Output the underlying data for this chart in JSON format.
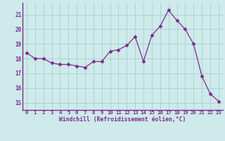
{
  "x": [
    0,
    1,
    2,
    3,
    4,
    5,
    6,
    7,
    8,
    9,
    10,
    11,
    12,
    13,
    14,
    15,
    16,
    17,
    18,
    19,
    20,
    21,
    22,
    23
  ],
  "y": [
    18.4,
    18.0,
    18.0,
    17.7,
    17.6,
    17.6,
    17.5,
    17.4,
    17.8,
    17.8,
    18.5,
    18.6,
    18.9,
    19.5,
    17.8,
    19.6,
    20.2,
    21.3,
    20.6,
    20.0,
    19.0,
    16.8,
    15.6,
    15.1
  ],
  "line_color": "#7b2d8b",
  "marker": "D",
  "marker_size": 2.5,
  "bg_color": "#ceeaea",
  "grid_color": "#aacfcf",
  "tick_color": "#7b2d8b",
  "label_color": "#7b2d8b",
  "xlabel": "Windchill (Refroidissement éolien,°C)",
  "ylim": [
    14.5,
    21.8
  ],
  "yticks": [
    15,
    16,
    17,
    18,
    19,
    20,
    21
  ],
  "xtick_labels": [
    "0",
    "1",
    "2",
    "3",
    "4",
    "5",
    "6",
    "7",
    "8",
    "9",
    "10",
    "11",
    "12",
    "13",
    "14",
    "15",
    "16",
    "17",
    "18",
    "19",
    "20",
    "21",
    "22",
    "23"
  ],
  "spine_color": "#7b2d8b",
  "spine_bottom_color": "#5a1a6b"
}
